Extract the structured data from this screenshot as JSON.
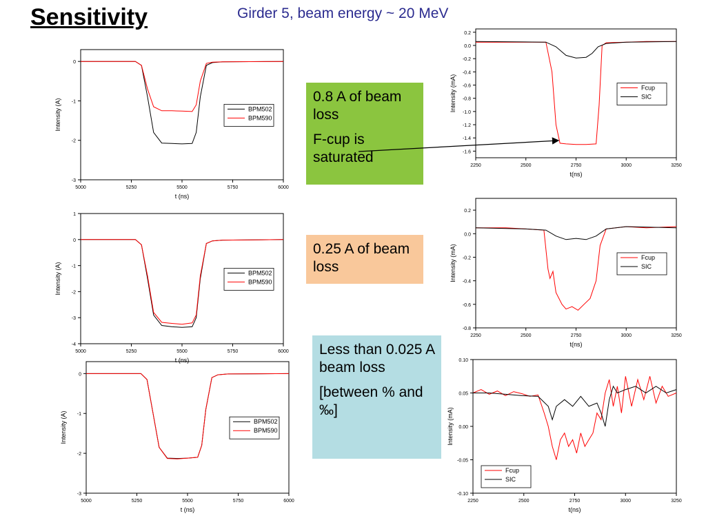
{
  "slide": {
    "title": "Sensitivity",
    "subtitle": "Girder 5, beam energy ~ 20 MeV"
  },
  "boxes": {
    "box1": {
      "lines": [
        "0.8 A of beam loss",
        "F-cup is saturated"
      ],
      "color": "#8bc53f"
    },
    "box2": {
      "lines": [
        "0.25 A of beam loss"
      ],
      "color": "#f9c89b"
    },
    "box3": {
      "lines": [
        "Less than 0.025 A beam loss",
        "[between % and ‰]"
      ],
      "color": "#b4dde3"
    }
  },
  "colors": {
    "series_black": "#000000",
    "series_red": "#ff0000"
  },
  "chart_data": [
    {
      "type": "line",
      "xlabel": "t (ns)",
      "ylabel": "Intensity (A)",
      "xlim": [
        5000,
        6000
      ],
      "ylim": [
        -3,
        0.3
      ],
      "xticks": [
        5000,
        5250,
        5500,
        5750,
        6000
      ],
      "yticks": [
        -3,
        -2,
        -1,
        0
      ],
      "legend": "right",
      "series": [
        {
          "name": "BPM502",
          "color": "#000000",
          "x": [
            5000,
            5270,
            5300,
            5330,
            5360,
            5400,
            5450,
            5500,
            5550,
            5570,
            5590,
            5620,
            5650,
            5700,
            6000
          ],
          "y": [
            0,
            0,
            -0.1,
            -0.9,
            -1.8,
            -2.07,
            -2.08,
            -2.09,
            -2.08,
            -1.8,
            -0.9,
            -0.1,
            -0.03,
            -0.01,
            0
          ]
        },
        {
          "name": "BPM590",
          "color": "#ff0000",
          "x": [
            5000,
            5270,
            5300,
            5330,
            5360,
            5400,
            5450,
            5500,
            5550,
            5570,
            5590,
            5620,
            5650,
            5700,
            6000
          ],
          "y": [
            0,
            0,
            -0.1,
            -0.7,
            -1.15,
            -1.25,
            -1.25,
            -1.26,
            -1.27,
            -1.1,
            -0.5,
            -0.05,
            -0.02,
            -0.01,
            0
          ]
        }
      ]
    },
    {
      "type": "line",
      "xlabel": "t(ns)",
      "ylabel": "Intensity (mA)",
      "xlim": [
        2250,
        3250
      ],
      "ylim": [
        -1.7,
        0.25
      ],
      "xticks": [
        2250,
        2500,
        2750,
        3000,
        3250
      ],
      "yticks": [
        -1.6,
        -1.4,
        -1.2,
        -1.0,
        -0.8,
        -0.6,
        -0.4,
        -0.2,
        0.0,
        0.2
      ],
      "legend": "right",
      "series": [
        {
          "name": "Fcup",
          "color": "#ff0000",
          "x": [
            2250,
            2600,
            2630,
            2650,
            2670,
            2700,
            2750,
            2800,
            2850,
            2865,
            2880,
            2900,
            3000,
            3100,
            3250
          ],
          "y": [
            0.05,
            0.05,
            -0.4,
            -1.2,
            -1.48,
            -1.49,
            -1.5,
            -1.5,
            -1.49,
            -0.9,
            0.0,
            0.04,
            0.05,
            0.06,
            0.06
          ]
        },
        {
          "name": "SIC",
          "color": "#000000",
          "x": [
            2250,
            2600,
            2650,
            2700,
            2750,
            2800,
            2830,
            2860,
            2900,
            3000,
            3250
          ],
          "y": [
            0.06,
            0.05,
            -0.02,
            -0.15,
            -0.19,
            -0.18,
            -0.12,
            -0.02,
            0.03,
            0.05,
            0.06
          ]
        }
      ]
    },
    {
      "type": "line",
      "xlabel": "t (ns)",
      "ylabel": "Intensity (A)",
      "xlim": [
        5000,
        6000
      ],
      "ylim": [
        -4,
        1
      ],
      "xticks": [
        5000,
        5250,
        5500,
        5750,
        6000
      ],
      "yticks": [
        -4,
        -3,
        -2,
        -1,
        0,
        1
      ],
      "legend": "right",
      "series": [
        {
          "name": "BPM502",
          "color": "#000000",
          "x": [
            5000,
            5270,
            5300,
            5330,
            5360,
            5400,
            5450,
            5500,
            5550,
            5570,
            5590,
            5620,
            5650,
            5700,
            6000
          ],
          "y": [
            0,
            0,
            -0.2,
            -1.5,
            -2.9,
            -3.3,
            -3.35,
            -3.37,
            -3.35,
            -3.0,
            -1.5,
            -0.15,
            -0.05,
            -0.02,
            0
          ]
        },
        {
          "name": "BPM590",
          "color": "#ff0000",
          "x": [
            5000,
            5270,
            5300,
            5330,
            5360,
            5400,
            5450,
            5500,
            5550,
            5570,
            5590,
            5620,
            5650,
            5700,
            6000
          ],
          "y": [
            0,
            0,
            -0.2,
            -1.4,
            -2.8,
            -3.18,
            -3.22,
            -3.25,
            -3.2,
            -2.9,
            -1.4,
            -0.15,
            -0.05,
            -0.02,
            0
          ]
        }
      ]
    },
    {
      "type": "line",
      "xlabel": "t(ns)",
      "ylabel": "Intensity (mA)",
      "xlim": [
        2250,
        3250
      ],
      "ylim": [
        -0.8,
        0.3
      ],
      "xticks": [
        2250,
        2500,
        2750,
        3000,
        3250
      ],
      "yticks": [
        -0.8,
        -0.6,
        -0.4,
        -0.2,
        0.0,
        0.2
      ],
      "legend": "right",
      "series": [
        {
          "name": "Fcup",
          "color": "#ff0000",
          "x": [
            2250,
            2400,
            2500,
            2590,
            2610,
            2620,
            2635,
            2650,
            2680,
            2700,
            2730,
            2760,
            2790,
            2820,
            2850,
            2870,
            2900,
            3000,
            3100,
            3250
          ],
          "y": [
            0.05,
            0.05,
            0.04,
            0.03,
            -0.3,
            -0.38,
            -0.32,
            -0.5,
            -0.6,
            -0.64,
            -0.62,
            -0.65,
            -0.6,
            -0.55,
            -0.4,
            -0.1,
            0.04,
            0.06,
            0.05,
            0.06
          ]
        },
        {
          "name": "SIC",
          "color": "#000000",
          "x": [
            2250,
            2500,
            2600,
            2650,
            2700,
            2750,
            2800,
            2850,
            2900,
            3000,
            3250
          ],
          "y": [
            0.05,
            0.04,
            0.03,
            -0.02,
            -0.05,
            -0.04,
            -0.05,
            -0.02,
            0.04,
            0.06,
            0.05
          ]
        }
      ]
    },
    {
      "type": "line",
      "xlabel": "t (ns)",
      "ylabel": "Intensity (A)",
      "xlim": [
        5000,
        6000
      ],
      "ylim": [
        -3,
        0.3
      ],
      "xticks": [
        5000,
        5250,
        5500,
        5750,
        6000
      ],
      "yticks": [
        -3,
        -2,
        -1,
        0
      ],
      "legend": "right",
      "series": [
        {
          "name": "BPM502",
          "color": "#000000",
          "x": [
            5000,
            5270,
            5300,
            5330,
            5360,
            5400,
            5450,
            5500,
            5550,
            5570,
            5590,
            5620,
            5650,
            5700,
            6000
          ],
          "y": [
            0,
            0,
            -0.15,
            -1.0,
            -1.85,
            -2.12,
            -2.13,
            -2.12,
            -2.1,
            -1.8,
            -0.9,
            -0.1,
            -0.03,
            -0.01,
            0
          ]
        },
        {
          "name": "BPM590",
          "color": "#ff0000",
          "x": [
            5000,
            5270,
            5300,
            5330,
            5360,
            5400,
            5450,
            5500,
            5550,
            5570,
            5590,
            5620,
            5650,
            5700,
            6000
          ],
          "y": [
            0,
            0,
            -0.15,
            -1.0,
            -1.85,
            -2.13,
            -2.14,
            -2.12,
            -2.1,
            -1.8,
            -0.9,
            -0.1,
            -0.03,
            -0.01,
            0
          ]
        }
      ]
    },
    {
      "type": "line",
      "xlabel": "t(ns)",
      "ylabel": "Intensity (mA)",
      "xlim": [
        2250,
        3250
      ],
      "ylim": [
        -0.1,
        0.1
      ],
      "xticks": [
        2250,
        2500,
        2750,
        3000,
        3250
      ],
      "yticks": [
        -0.1,
        -0.05,
        0.0,
        0.05,
        0.1
      ],
      "ytick_labels": [
        "-0.10",
        "-0.05",
        "0.00",
        "0.05",
        "0.10"
      ],
      "legend": "bottom-left",
      "series": [
        {
          "name": "Fcup",
          "color": "#ff0000",
          "x": [
            2250,
            2290,
            2330,
            2370,
            2410,
            2450,
            2490,
            2530,
            2570,
            2600,
            2620,
            2640,
            2660,
            2680,
            2700,
            2720,
            2740,
            2760,
            2780,
            2800,
            2820,
            2840,
            2860,
            2880,
            2900,
            2920,
            2940,
            2960,
            2980,
            3000,
            3030,
            3060,
            3090,
            3120,
            3150,
            3180,
            3210,
            3250
          ],
          "y": [
            0.05,
            0.055,
            0.048,
            0.053,
            0.046,
            0.052,
            0.049,
            0.045,
            0.047,
            0.02,
            0.0,
            -0.03,
            -0.05,
            -0.02,
            -0.01,
            -0.03,
            -0.02,
            -0.04,
            -0.01,
            -0.03,
            -0.02,
            -0.01,
            0.02,
            0.01,
            0.05,
            0.07,
            0.03,
            0.06,
            0.02,
            0.075,
            0.03,
            0.07,
            0.04,
            0.075,
            0.035,
            0.06,
            0.045,
            0.05
          ]
        },
        {
          "name": "SIC",
          "color": "#000000",
          "x": [
            2250,
            2330,
            2410,
            2490,
            2570,
            2620,
            2640,
            2660,
            2700,
            2740,
            2780,
            2820,
            2860,
            2880,
            2900,
            2920,
            2940,
            2960,
            3000,
            3050,
            3100,
            3150,
            3200,
            3250
          ],
          "y": [
            0.05,
            0.05,
            0.048,
            0.046,
            0.045,
            0.03,
            0.01,
            0.03,
            0.04,
            0.03,
            0.045,
            0.03,
            0.035,
            0.02,
            0.0,
            0.04,
            0.06,
            0.05,
            0.055,
            0.06,
            0.05,
            0.06,
            0.05,
            0.055
          ]
        }
      ]
    }
  ]
}
